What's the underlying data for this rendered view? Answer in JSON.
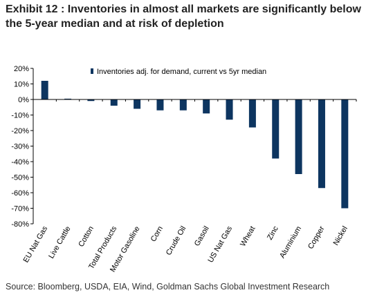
{
  "title": "Exhibit 12 : Inventories in almost all markets are significantly below the 5-year median and at risk of depletion",
  "source": "Source: Bloomberg, USDA, EIA, Wind, Goldman Sachs Global Investment Research",
  "chart_data": {
    "type": "bar",
    "categories": [
      "EU Nat Gas",
      "Live Cattle",
      "Cotton",
      "Total Products",
      "Motor Gasoline",
      "Corn",
      "Crude Oil",
      "Gasoil",
      "US Nat Gas",
      "Wheat",
      "Zinc",
      "Aluminium",
      "Copper",
      "Nickel"
    ],
    "series": [
      {
        "name": "Inventories adj. for demand, current vs 5yr median",
        "values": [
          12,
          0.5,
          -1,
          -4,
          -6,
          -7,
          -7,
          -9,
          -13,
          -18,
          -38,
          -48,
          -57,
          -70
        ]
      }
    ],
    "ylim": [
      -80,
      20
    ],
    "yticks": [
      20,
      10,
      0,
      -10,
      -20,
      -30,
      -40,
      -50,
      -60,
      -70,
      -80
    ],
    "ytick_labels": [
      "20%",
      "10%",
      "0%",
      "-10%",
      "-20%",
      "-30%",
      "-40%",
      "-50%",
      "-60%",
      "-70%",
      "-80%"
    ],
    "legend_position": "top-right",
    "grid": false,
    "colors": {
      "bar": "#0d3560",
      "axis": "#000000"
    }
  }
}
